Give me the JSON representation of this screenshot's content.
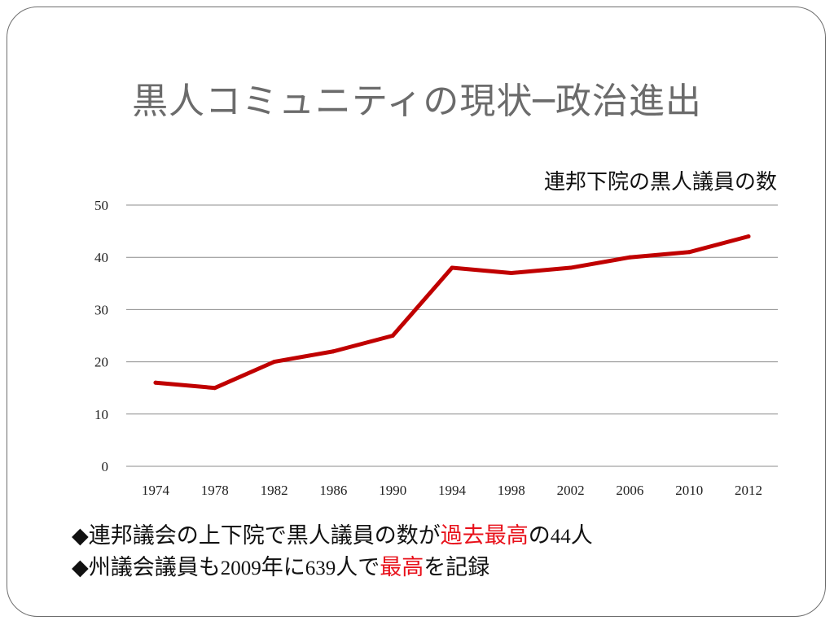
{
  "slide": {
    "title": "黒人コミュニティの現状─政治進出"
  },
  "chart_data": {
    "type": "line",
    "title": "連邦下院の黒人議員の数",
    "categories": [
      "1974",
      "1978",
      "1982",
      "1986",
      "1990",
      "1994",
      "1998",
      "2002",
      "2006",
      "2010",
      "2012"
    ],
    "series": [
      {
        "values": [
          16,
          15,
          20,
          22,
          25,
          38,
          37,
          38,
          40,
          41,
          44
        ],
        "color": "#c00000"
      }
    ],
    "yticks": [
      "0",
      "10",
      "20",
      "30",
      "40",
      "50"
    ],
    "ylim": [
      0,
      50
    ],
    "grid": true,
    "legend": "none"
  },
  "bullets": {
    "marker": "◆",
    "line1": {
      "text1": "連邦議会の上下院で黒人議員の数が",
      "highlight": "過去最高",
      "text2": "の",
      "number": "44",
      "text3": "人"
    },
    "line2": {
      "text1": "州議会議員も",
      "year": "2009",
      "text2": "年に",
      "number": "639",
      "text3": "人で",
      "highlight": "最高",
      "text4": "を記録"
    },
    "highlight_color": "#e8101a"
  }
}
